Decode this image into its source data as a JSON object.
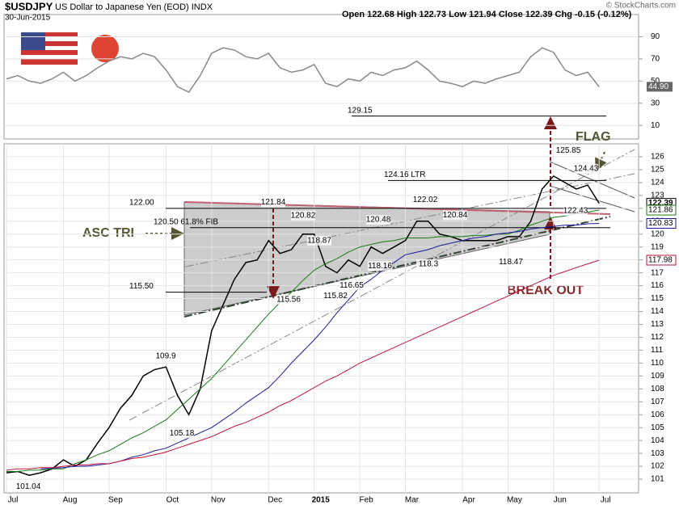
{
  "header": {
    "symbol": "$USDJPY",
    "name": "US Dollar to Japanese Yen (EOD) INDX",
    "date": "30-Jun-2015",
    "quote": "Open 122.68 High 122.73 Low 121.94 Close 122.39 Chg -0.15 (-0.12%)",
    "credit": "© StockCharts.com"
  },
  "chart_data": [
    {
      "type": "line",
      "panel": "rsi",
      "ylim": [
        0,
        110
      ],
      "yticks": [
        10,
        30,
        50,
        70,
        90
      ],
      "series": [
        {
          "color": "#888888",
          "last_label": "44.90",
          "values": [
            52,
            55,
            50,
            48,
            52,
            58,
            50,
            55,
            62,
            68,
            72,
            70,
            75,
            72,
            60,
            45,
            40,
            55,
            75,
            80,
            78,
            72,
            70,
            75,
            62,
            58,
            60,
            65,
            48,
            45,
            52,
            50,
            58,
            55,
            60,
            62,
            68,
            60,
            50,
            48,
            45,
            50,
            48,
            52,
            55,
            58,
            72,
            80,
            76,
            60,
            55,
            58,
            44.9,
            null
          ]
        }
      ]
    },
    {
      "type": "line",
      "panel": "price",
      "categories": [
        "Jul",
        null,
        null,
        null,
        null,
        "Aug",
        null,
        null,
        null,
        "Sep",
        null,
        null,
        null,
        null,
        "Oct",
        null,
        null,
        null,
        "Nov",
        null,
        null,
        null,
        null,
        "Dec",
        null,
        null,
        null,
        "2015",
        null,
        null,
        null,
        "Feb",
        null,
        null,
        null,
        "Mar",
        null,
        null,
        null,
        null,
        "Apr",
        null,
        null,
        null,
        "May",
        null,
        null,
        null,
        "Jun",
        null,
        null,
        null,
        "Jul",
        null
      ],
      "ylim": [
        100,
        127
      ],
      "yticks": [
        101,
        102,
        103,
        104,
        105,
        106,
        107,
        108,
        109,
        110,
        111,
        112,
        113,
        114,
        115,
        116,
        117,
        118,
        119,
        120,
        121,
        122,
        123,
        124,
        125,
        126
      ],
      "series": [
        {
          "color": "#000000",
          "values": [
            101.5,
            101.6,
            101.3,
            101.5,
            101.8,
            102.5,
            102.0,
            102.5,
            103.8,
            105.0,
            106.5,
            107.5,
            109.0,
            109.5,
            109.7,
            107.5,
            106.0,
            108.0,
            112.5,
            114.5,
            116.5,
            117.8,
            118.0,
            119.5,
            118.5,
            118.8,
            120.0,
            120.0,
            117.5,
            117.0,
            118.0,
            117.5,
            119.0,
            118.5,
            119.0,
            119.5,
            121.0,
            121.0,
            120.0,
            119.8,
            119.5,
            119.5,
            119.5,
            119.5,
            119.8,
            119.8,
            121.0,
            123.5,
            124.5,
            124.0,
            123.5,
            123.8,
            122.39,
            null
          ]
        },
        {
          "color": "#1a7a1a",
          "values": [
            101.6,
            101.6,
            101.7,
            101.7,
            101.8,
            101.8,
            102.2,
            102.5,
            102.9,
            103.2,
            103.7,
            104.2,
            104.6,
            105.1,
            105.6,
            106.4,
            107.2,
            108.0,
            108.8,
            109.8,
            110.8,
            111.8,
            112.8,
            113.8,
            114.7,
            115.5,
            116.4,
            117.2,
            117.7,
            118.1,
            118.6,
            119.0,
            119.2,
            119.4,
            119.5,
            119.7,
            119.7,
            119.7,
            119.8,
            119.8,
            119.8,
            119.9,
            119.9,
            120.0,
            120.0,
            120.3,
            120.7,
            121.0,
            121.3,
            121.4,
            121.6,
            121.7,
            121.86,
            null
          ]
        },
        {
          "color": "#1a1a9a",
          "values": [
            null,
            null,
            null,
            101.8,
            101.85,
            101.9,
            102.0,
            102.0,
            102.1,
            102.2,
            102.4,
            102.7,
            102.9,
            103.2,
            103.4,
            103.8,
            104.2,
            104.6,
            105.0,
            105.6,
            106.2,
            106.9,
            107.5,
            108.1,
            109.0,
            110.0,
            110.9,
            111.8,
            112.8,
            113.9,
            114.9,
            115.9,
            116.5,
            117.2,
            117.8,
            118.4,
            118.6,
            118.8,
            119.1,
            119.3,
            119.5,
            119.7,
            119.8,
            120.0,
            120.1,
            120.2,
            120.4,
            120.5,
            120.6,
            120.7,
            120.7,
            120.8,
            120.83,
            null
          ]
        },
        {
          "color": "#c0143c",
          "values": [
            101.7,
            101.8,
            101.8,
            101.9,
            101.9,
            102.0,
            102.1,
            102.1,
            102.2,
            102.2,
            102.4,
            102.6,
            102.7,
            102.9,
            103.1,
            103.4,
            103.7,
            104.0,
            104.3,
            104.7,
            105.1,
            105.4,
            105.8,
            106.2,
            106.7,
            107.1,
            107.6,
            108.1,
            108.6,
            109.0,
            109.5,
            110.0,
            110.4,
            110.8,
            111.2,
            111.6,
            112.0,
            112.4,
            112.8,
            113.2,
            113.6,
            114.0,
            114.4,
            114.8,
            115.2,
            115.6,
            116.0,
            116.4,
            116.8,
            117.1,
            117.4,
            117.7,
            117.98,
            null
          ]
        }
      ],
      "levels": [
        {
          "value": 129.15,
          "label": "129.15"
        },
        {
          "value": 124.16,
          "label": "124.16 LTR"
        },
        {
          "value": 122.0,
          "label": "122.00"
        },
        {
          "value": 120.5,
          "label": "120.50  61.8% FIB"
        },
        {
          "value": 115.5,
          "label": "115.50"
        }
      ],
      "price_labels": [
        101.04,
        109.9,
        105.18,
        121.84,
        115.56,
        120.82,
        118.87,
        115.82,
        116.65,
        120.48,
        118.16,
        122.02,
        118.3,
        120.84,
        118.47,
        122.43,
        125.85,
        124.43
      ],
      "annotations": [
        "ASC TRI",
        "FLAG",
        "BREAK OUT"
      ]
    }
  ]
}
